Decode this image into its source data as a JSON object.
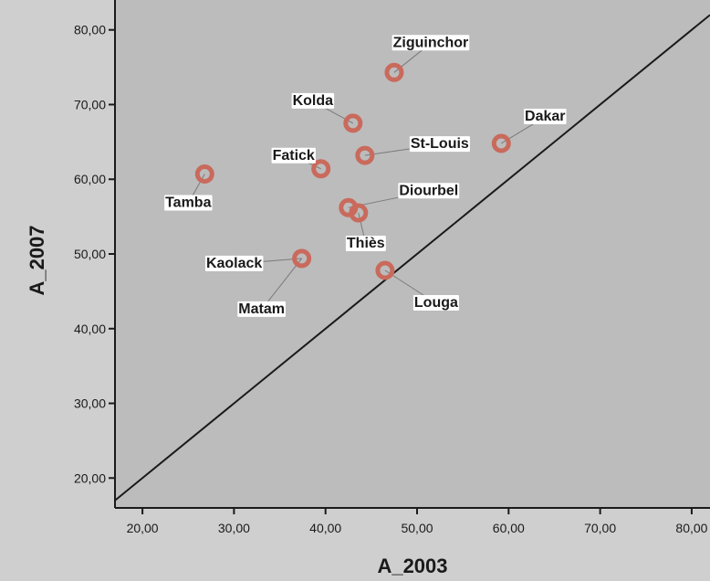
{
  "chart_data": {
    "type": "scatter",
    "title": "",
    "xlabel": "A_2003",
    "ylabel": "A_2007",
    "xlim": [
      17,
      82
    ],
    "ylim": [
      16,
      84
    ],
    "x_ticks": [
      "20,00",
      "30,00",
      "40,00",
      "50,00",
      "60,00",
      "70,00",
      "80,00"
    ],
    "y_ticks": [
      "20,00",
      "30,00",
      "40,00",
      "50,00",
      "60,00",
      "70,00",
      "80,00"
    ],
    "x_tick_values": [
      20,
      30,
      40,
      50,
      60,
      70,
      80
    ],
    "y_tick_values": [
      20,
      30,
      40,
      50,
      60,
      70,
      80
    ],
    "reference_line": "y = x",
    "grid": false,
    "legend": "none",
    "points": [
      {
        "label": "Ziguinchor",
        "x": 47.5,
        "y": 74.3
      },
      {
        "label": "Kolda",
        "x": 43.0,
        "y": 67.5
      },
      {
        "label": "Dakar",
        "x": 59.2,
        "y": 64.8
      },
      {
        "label": "St-Louis",
        "x": 44.3,
        "y": 63.2
      },
      {
        "label": "Fatick",
        "x": 39.5,
        "y": 61.4
      },
      {
        "label": "Tamba",
        "x": 26.8,
        "y": 60.7
      },
      {
        "label": "Diourbel",
        "x": 42.5,
        "y": 56.2
      },
      {
        "label": "Thiès",
        "x": 43.6,
        "y": 55.5
      },
      {
        "label": "Kaolack",
        "x": 37.4,
        "y": 49.4
      },
      {
        "label": "Matam",
        "x": 37.4,
        "y": 49.4
      },
      {
        "label": "Louga",
        "x": 46.5,
        "y": 47.8
      }
    ]
  },
  "colors": {
    "background": "#cfcfcf",
    "plot_area": "#bcbcbc",
    "point": "#c96a5c",
    "axis": "#1a1a1a",
    "label_box": "#ffffff"
  }
}
